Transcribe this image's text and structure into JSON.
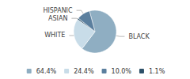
{
  "chart_data": {
    "type": "pie",
    "categories": [
      "BLACK",
      "WHITE",
      "ASIAN",
      "HISPANIC"
    ],
    "values": [
      64.4,
      24.4,
      1.1,
      10.0
    ],
    "value_labels": [
      "64.4%",
      "24.4%",
      "1.1%",
      "10.0%"
    ],
    "colors": [
      "#8faec2",
      "#c8dce8",
      "#2d5068",
      "#5b7f9e"
    ],
    "legend": "bottom"
  }
}
